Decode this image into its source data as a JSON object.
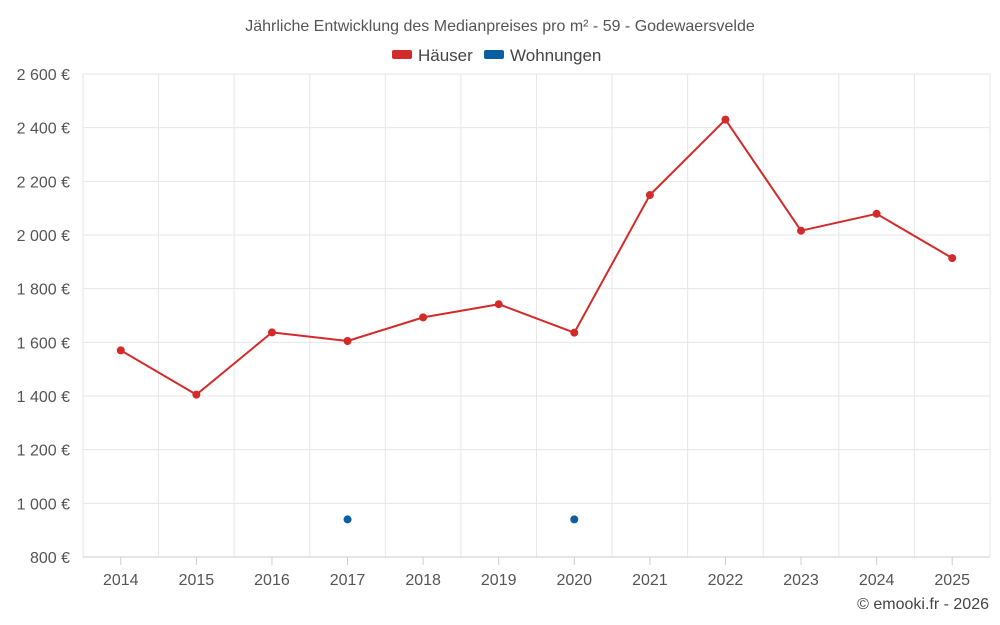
{
  "chart_data": {
    "type": "line",
    "title": "Jährliche Entwicklung des Medianpreises pro m² - 59 - Godewaersvelde",
    "categories": [
      "2014",
      "2015",
      "2016",
      "2017",
      "2018",
      "2019",
      "2020",
      "2021",
      "2022",
      "2023",
      "2024",
      "2025"
    ],
    "series": [
      {
        "name": "Häuser",
        "color": "#d32a2a",
        "values": [
          1570,
          1405,
          1637,
          1605,
          1693,
          1742,
          1636,
          2149,
          2430,
          2016,
          2079,
          1914
        ]
      },
      {
        "name": "Wohnungen",
        "color": "#0b5fa0",
        "values": [
          null,
          null,
          null,
          940,
          null,
          null,
          940,
          null,
          null,
          null,
          null,
          null
        ]
      }
    ],
    "ylim": [
      800,
      2600
    ],
    "yticks": [
      800,
      1000,
      1200,
      1400,
      1600,
      1800,
      2000,
      2200,
      2400,
      2600
    ],
    "ytick_labels": [
      "800 €",
      "1 000 €",
      "1 200 €",
      "1 400 €",
      "1 600 €",
      "1 800 €",
      "2 000 €",
      "2 200 €",
      "2 400 €",
      "2 600 €"
    ],
    "legend": "top-center",
    "grid": true
  },
  "credit": "© emooki.fr - 2026"
}
